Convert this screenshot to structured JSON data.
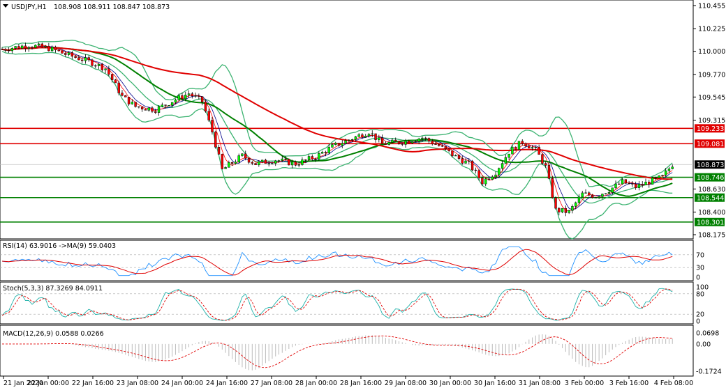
{
  "header": {
    "symbol": "USDJPY,H1",
    "ohlc": "108.908 108.911 108.847 108.873"
  },
  "chart_data": {
    "type": "candlestick",
    "symbol": "USDJPY",
    "timeframe": "H1",
    "last_price": "108.873",
    "price_axis": {
      "ticks": [
        "110.455",
        "110.225",
        "110.000",
        "109.770",
        "109.545",
        "109.315",
        "108.630",
        "108.400",
        "108.175"
      ],
      "range": [
        108.175,
        110.455
      ]
    },
    "levels": [
      {
        "label": "109.233",
        "color": "#e00000"
      },
      {
        "label": "109.081",
        "color": "#e00000"
      },
      {
        "label": "108.746",
        "color": "#008000"
      },
      {
        "label": "108.544",
        "color": "#008000"
      },
      {
        "label": "108.301",
        "color": "#008000"
      }
    ],
    "time_axis": [
      "21 Jan 2020",
      "22 Jan 00:00",
      "22 Jan 16:00",
      "23 Jan 08:00",
      "24 Jan 00:00",
      "24 Jan 16:00",
      "27 Jan 08:00",
      "28 Jan 00:00",
      "28 Jan 16:00",
      "29 Jan 08:00",
      "30 Jan 00:00",
      "30 Jan 16:00",
      "31 Jan 08:00",
      "3 Feb 00:00",
      "3 Feb 16:00",
      "4 Feb 08:00"
    ],
    "close_path": [
      [
        0,
        110.02
      ],
      [
        8,
        110.06
      ],
      [
        14,
        110.03
      ],
      [
        20,
        109.96
      ],
      [
        26,
        109.9
      ],
      [
        31,
        109.83
      ],
      [
        36,
        109.55
      ],
      [
        40,
        109.45
      ],
      [
        46,
        109.42
      ],
      [
        52,
        109.52
      ],
      [
        56,
        109.58
      ],
      [
        60,
        109.5
      ],
      [
        63,
        109.2
      ],
      [
        66,
        108.82
      ],
      [
        72,
        108.96
      ],
      [
        76,
        108.88
      ],
      [
        82,
        108.92
      ],
      [
        88,
        108.88
      ],
      [
        94,
        108.95
      ],
      [
        99,
        109.05
      ],
      [
        104,
        109.12
      ],
      [
        110,
        109.2
      ],
      [
        114,
        109.08
      ],
      [
        120,
        109.1
      ],
      [
        126,
        109.14
      ],
      [
        131,
        109.06
      ],
      [
        136,
        108.95
      ],
      [
        140,
        108.88
      ],
      [
        144,
        108.7
      ],
      [
        148,
        108.8
      ],
      [
        152,
        109.0
      ],
      [
        156,
        109.1
      ],
      [
        160,
        109.02
      ],
      [
        163,
        108.85
      ],
      [
        166,
        108.42
      ],
      [
        170,
        108.4
      ],
      [
        174,
        108.58
      ],
      [
        178,
        108.56
      ],
      [
        182,
        108.62
      ],
      [
        186,
        108.7
      ],
      [
        190,
        108.65
      ],
      [
        194,
        108.7
      ],
      [
        198,
        108.75
      ],
      [
        201,
        108.873
      ]
    ],
    "indicators": {
      "rsi": {
        "title": "RSI(14) 63.9016 ->MA(9) 59.0403",
        "ticks": [
          "70",
          "30",
          "0"
        ],
        "value": 63.9016,
        "ma": 59.0403
      },
      "stoch": {
        "title": "Stoch(5,3,3) 87.3269 84.0911",
        "ticks": [
          "100",
          "80",
          "20",
          "0"
        ],
        "main": 87.3269,
        "signal": 84.0911
      },
      "macd": {
        "title": "MACD(12,26,9) 0.0588 0.0266",
        "ticks": [
          "0.0698",
          "0.00",
          "-0.1724"
        ],
        "main": 0.0588,
        "signal": 0.0266
      }
    },
    "colors": {
      "bull": "#00ff00",
      "bear": "#ff0000",
      "ma_slow": "#e00000",
      "ma_mid": "#008000",
      "bands": "#3cb371",
      "ma_fast1": "#00008b",
      "ma_fast2": "#ff0000",
      "rsi": "#1e90ff",
      "signal": "#e00000"
    }
  }
}
